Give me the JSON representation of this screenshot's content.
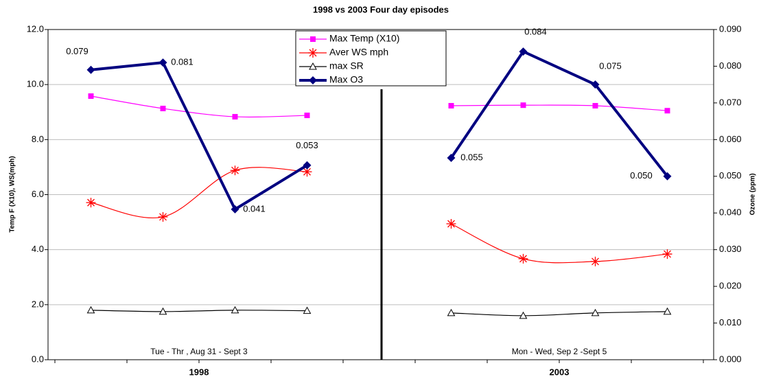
{
  "chart_data": {
    "type": "line",
    "title": "1998 vs 2003 Four day episodes",
    "ylabel": "Temp F (X10), WS(mph)",
    "y2label": "Ozone (ppm)",
    "categories": [
      null,
      null,
      null,
      null,
      null,
      null,
      null,
      null,
      null
    ],
    "group_labels": [
      "1998",
      "2003"
    ],
    "annotations": [
      "Tue - Thr ,  Aug 31 - Sept 3",
      "Mon - Wed, Sep 2 -Sept 5"
    ],
    "ylim": [
      0,
      12
    ],
    "yticks": [
      {
        "value": 0,
        "label": "0.0"
      },
      {
        "value": 2,
        "label": "2.0"
      },
      {
        "value": 4,
        "label": "4.0"
      },
      {
        "value": 6,
        "label": "6.0"
      },
      {
        "value": 8,
        "label": "8.0"
      },
      {
        "value": 10,
        "label": "10.0"
      },
      {
        "value": 12,
        "label": "12.0"
      }
    ],
    "y2lim": [
      0,
      0.09
    ],
    "y2ticks": [
      {
        "value": 0,
        "label": "0.000"
      },
      {
        "value": 0.01,
        "label": "0.010"
      },
      {
        "value": 0.02,
        "label": "0.020"
      },
      {
        "value": 0.03,
        "label": "0.030"
      },
      {
        "value": 0.04,
        "label": "0.040"
      },
      {
        "value": 0.05,
        "label": "0.050"
      },
      {
        "value": 0.06,
        "label": "0.060"
      },
      {
        "value": 0.07,
        "label": "0.070"
      },
      {
        "value": 0.08,
        "label": "0.080"
      },
      {
        "value": 0.09,
        "label": "0.090"
      }
    ],
    "grid": true,
    "legend": "top",
    "series": [
      {
        "name": "Max Temp (X10)",
        "color": "#ff00ff",
        "marker": "square",
        "smooth": true,
        "values": [
          9.58,
          9.13,
          8.83,
          8.88,
          null,
          9.23,
          9.25,
          9.23,
          9.05
        ]
      },
      {
        "name": "Aver WS mph",
        "color": "#ff0000",
        "marker": "star",
        "smooth": true,
        "values": [
          5.71,
          5.19,
          6.88,
          6.83,
          null,
          4.94,
          3.67,
          3.57,
          3.84
        ]
      },
      {
        "name": "max SR",
        "color": "#000000",
        "marker": "triangle",
        "smooth": true,
        "values": [
          1.8,
          1.75,
          1.8,
          1.78,
          null,
          1.7,
          1.6,
          1.7,
          1.75
        ]
      },
      {
        "name": "Max O3",
        "color": "#000080",
        "marker": "diamond",
        "axis": "y2",
        "width": 4,
        "values": [
          0.079,
          0.081,
          0.041,
          0.053,
          null,
          0.055,
          0.084,
          0.075,
          0.05
        ],
        "value_labels": [
          "0.079",
          "0.081",
          "0.041",
          "0.053",
          null,
          "0.055",
          "0.084",
          "0.075",
          "0.050"
        ]
      }
    ]
  }
}
